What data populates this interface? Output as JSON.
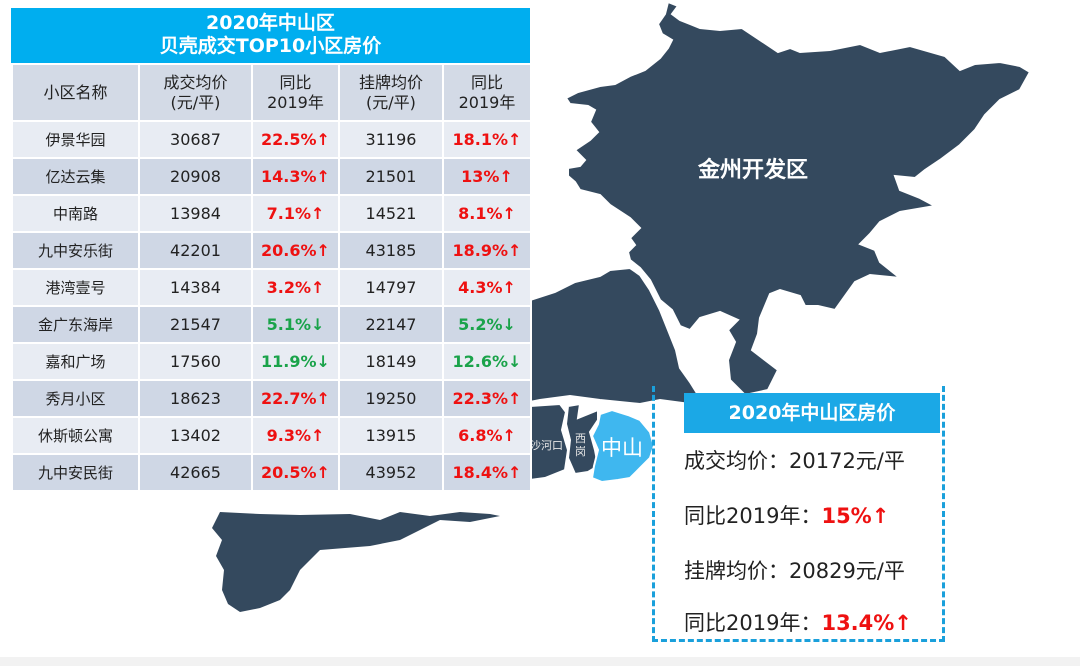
{
  "table": {
    "title_line1": "2020年中山区",
    "title_line2": "贝壳成交TOP10小区房价",
    "headers": [
      {
        "line1": "小区名称",
        "line2": ""
      },
      {
        "line1": "成交均价",
        "line2": "(元/平)"
      },
      {
        "line1": "同比",
        "line2": "2019年"
      },
      {
        "line1": "挂牌均价",
        "line2": "(元/平)"
      },
      {
        "line1": "同比",
        "line2": "2019年"
      }
    ],
    "rows": [
      {
        "name": "伊景华园",
        "deal_price": "30687",
        "deal_yoy": "22.5%↑",
        "deal_dir": "up",
        "list_price": "31196",
        "list_yoy": "18.1%↑",
        "list_dir": "up"
      },
      {
        "name": "亿达云集",
        "deal_price": "20908",
        "deal_yoy": "14.3%↑",
        "deal_dir": "up",
        "list_price": "21501",
        "list_yoy": "13%↑",
        "list_dir": "up"
      },
      {
        "name": "中南路",
        "deal_price": "13984",
        "deal_yoy": "7.1%↑",
        "deal_dir": "up",
        "list_price": "14521",
        "list_yoy": "8.1%↑",
        "list_dir": "up"
      },
      {
        "name": "九中安乐街",
        "deal_price": "42201",
        "deal_yoy": "20.6%↑",
        "deal_dir": "up",
        "list_price": "43185",
        "list_yoy": "18.9%↑",
        "list_dir": "up"
      },
      {
        "name": "港湾壹号",
        "deal_price": "14384",
        "deal_yoy": "3.2%↑",
        "deal_dir": "up",
        "list_price": "14797",
        "list_yoy": "4.3%↑",
        "list_dir": "up"
      },
      {
        "name": "金广东海岸",
        "deal_price": "21547",
        "deal_yoy": "5.1%↓",
        "deal_dir": "down",
        "list_price": "22147",
        "list_yoy": "5.2%↓",
        "list_dir": "down"
      },
      {
        "name": "嘉和广场",
        "deal_price": "17560",
        "deal_yoy": "11.9%↓",
        "deal_dir": "down",
        "list_price": "18149",
        "list_yoy": "12.6%↓",
        "list_dir": "down"
      },
      {
        "name": "秀月小区",
        "deal_price": "18623",
        "deal_yoy": "22.7%↑",
        "deal_dir": "up",
        "list_price": "19250",
        "list_yoy": "22.3%↑",
        "list_dir": "up"
      },
      {
        "name": "休斯顿公寓",
        "deal_price": "13402",
        "deal_yoy": "9.3%↑",
        "deal_dir": "up",
        "list_price": "13915",
        "list_yoy": "6.8%↑",
        "list_dir": "up"
      },
      {
        "name": "九中安民街",
        "deal_price": "42665",
        "deal_yoy": "20.5%↑",
        "deal_dir": "up",
        "list_price": "43952",
        "list_yoy": "18.4%↑",
        "list_dir": "up"
      }
    ]
  },
  "map": {
    "labels": {
      "jinzhou": "金州开发区",
      "shahekou": "沙河口",
      "xigang": "西岗",
      "zhongshan": "中山"
    },
    "colors": {
      "land": "#34495e",
      "highlight": "#3fb7ef",
      "border": "#ffffff"
    }
  },
  "summary": {
    "title": "2020年中山区房价",
    "deal_label": "成交均价：",
    "deal_value": "20172元/平",
    "deal_yoy_label": "同比2019年：",
    "deal_yoy_value": "15%↑",
    "list_label": "挂牌均价：",
    "list_value": "20829元/平",
    "list_yoy_label": "同比2019年：",
    "list_yoy_value": "13.4%↑"
  },
  "colors": {
    "title_blue": "#00aeef",
    "up_red": "#ee1111",
    "down_green": "#1aa34a",
    "dash_blue": "#1aa0db"
  }
}
